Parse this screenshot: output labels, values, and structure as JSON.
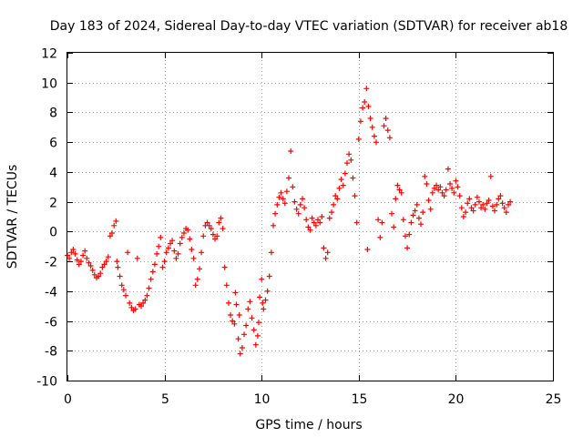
{
  "chart_data": {
    "type": "scatter",
    "title": "Day 183 of 2024, Sidereal Day-to-day VTEC variation (SDTVAR) for receiver ab18",
    "xlabel": "GPS time / hours",
    "ylabel": "SDTVAR / TECUs",
    "xlim": [
      0,
      25
    ],
    "ylim": [
      -10,
      12
    ],
    "grid": true,
    "legend": "none",
    "marker": "+",
    "color": "#ff0000",
    "x_ticks": [
      {
        "value": 0,
        "label": "0"
      },
      {
        "value": 5,
        "label": "5"
      },
      {
        "value": 10,
        "label": "10"
      },
      {
        "value": 15,
        "label": "15"
      },
      {
        "value": 20,
        "label": "20"
      },
      {
        "value": 25,
        "label": "25"
      }
    ],
    "y_ticks": [
      {
        "value": -10,
        "label": "-10"
      },
      {
        "value": -8,
        "label": "-8"
      },
      {
        "value": -6,
        "label": "-6"
      },
      {
        "value": -4,
        "label": "-4"
      },
      {
        "value": -2,
        "label": "-2"
      },
      {
        "value": 0,
        "label": "0"
      },
      {
        "value": 2,
        "label": "2"
      },
      {
        "value": 4,
        "label": "4"
      },
      {
        "value": 6,
        "label": "6"
      },
      {
        "value": 8,
        "label": "8"
      },
      {
        "value": 10,
        "label": "10"
      },
      {
        "value": 12,
        "label": "12"
      }
    ],
    "series": [
      {
        "name": "sdtvar",
        "points": [
          [
            0.0,
            -1.6
          ],
          [
            0.1,
            -1.8
          ],
          [
            0.2,
            -1.4
          ],
          [
            0.3,
            -1.2
          ],
          [
            0.4,
            -1.5
          ],
          [
            0.5,
            -1.9
          ],
          [
            0.6,
            -2.2
          ],
          [
            0.7,
            -2.0
          ],
          [
            0.8,
            -1.6
          ],
          [
            0.9,
            -1.3
          ],
          [
            1.0,
            -1.8
          ],
          [
            1.1,
            -2.1
          ],
          [
            1.2,
            -2.3
          ],
          [
            1.3,
            -2.6
          ],
          [
            1.4,
            -2.9
          ],
          [
            1.5,
            -3.1
          ],
          [
            1.6,
            -3.0
          ],
          [
            1.7,
            -2.8
          ],
          [
            1.8,
            -2.4
          ],
          [
            1.9,
            -2.2
          ],
          [
            2.0,
            -2.0
          ],
          [
            2.1,
            -1.7
          ],
          [
            2.2,
            -0.3
          ],
          [
            2.3,
            -0.1
          ],
          [
            2.4,
            0.4
          ],
          [
            2.5,
            0.7
          ],
          [
            2.55,
            -2.0
          ],
          [
            2.6,
            -2.4
          ],
          [
            2.7,
            -3.0
          ],
          [
            2.8,
            -3.6
          ],
          [
            2.9,
            -3.9
          ],
          [
            3.0,
            -4.3
          ],
          [
            3.1,
            -1.4
          ],
          [
            3.2,
            -4.8
          ],
          [
            3.3,
            -5.1
          ],
          [
            3.4,
            -5.3
          ],
          [
            3.5,
            -5.2
          ],
          [
            3.6,
            -1.8
          ],
          [
            3.7,
            -4.9
          ],
          [
            3.8,
            -5.0
          ],
          [
            3.9,
            -4.8
          ],
          [
            4.0,
            -4.6
          ],
          [
            4.1,
            -4.3
          ],
          [
            4.2,
            -3.8
          ],
          [
            4.3,
            -3.2
          ],
          [
            4.4,
            -2.7
          ],
          [
            4.5,
            -2.2
          ],
          [
            4.6,
            -1.5
          ],
          [
            4.7,
            -1.0
          ],
          [
            4.8,
            -0.4
          ],
          [
            4.9,
            -2.4
          ],
          [
            5.0,
            -2.0
          ],
          [
            5.1,
            -1.4
          ],
          [
            5.2,
            -1.1
          ],
          [
            5.3,
            -0.8
          ],
          [
            5.4,
            -0.6
          ],
          [
            5.5,
            -1.3
          ],
          [
            5.6,
            -1.8
          ],
          [
            5.7,
            -1.5
          ],
          [
            5.8,
            -0.8
          ],
          [
            5.9,
            -0.4
          ],
          [
            6.0,
            -0.1
          ],
          [
            6.1,
            0.2
          ],
          [
            6.2,
            0.1
          ],
          [
            6.3,
            -0.5
          ],
          [
            6.4,
            -1.2
          ],
          [
            6.5,
            -1.8
          ],
          [
            6.6,
            -3.6
          ],
          [
            6.7,
            -3.2
          ],
          [
            6.8,
            -2.5
          ],
          [
            6.9,
            -1.4
          ],
          [
            7.0,
            -0.3
          ],
          [
            7.1,
            0.4
          ],
          [
            7.2,
            0.6
          ],
          [
            7.3,
            0.4
          ],
          [
            7.4,
            0.2
          ],
          [
            7.5,
            -0.2
          ],
          [
            7.6,
            -0.5
          ],
          [
            7.7,
            -0.3
          ],
          [
            7.8,
            0.6
          ],
          [
            7.9,
            0.9
          ],
          [
            8.0,
            0.2
          ],
          [
            8.1,
            -2.4
          ],
          [
            8.2,
            -3.6
          ],
          [
            8.3,
            -4.8
          ],
          [
            8.4,
            -5.6
          ],
          [
            8.5,
            -6.0
          ],
          [
            8.6,
            -6.2
          ],
          [
            8.65,
            -4.1
          ],
          [
            8.7,
            -4.9
          ],
          [
            8.8,
            -7.2
          ],
          [
            8.85,
            -5.6
          ],
          [
            8.9,
            -8.2
          ],
          [
            9.0,
            -7.8
          ],
          [
            9.1,
            -6.9
          ],
          [
            9.2,
            -6.3
          ],
          [
            9.3,
            -5.2
          ],
          [
            9.4,
            -4.7
          ],
          [
            9.5,
            -5.8
          ],
          [
            9.6,
            -6.6
          ],
          [
            9.7,
            -7.6
          ],
          [
            9.8,
            -7.0
          ],
          [
            9.85,
            -6.1
          ],
          [
            9.9,
            -4.4
          ],
          [
            10.0,
            -3.2
          ],
          [
            10.05,
            -4.8
          ],
          [
            10.1,
            -5.2
          ],
          [
            10.2,
            -4.6
          ],
          [
            10.3,
            -4.0
          ],
          [
            10.4,
            -3.0
          ],
          [
            10.5,
            -1.4
          ],
          [
            10.6,
            0.4
          ],
          [
            10.7,
            1.2
          ],
          [
            10.8,
            1.8
          ],
          [
            10.9,
            2.3
          ],
          [
            11.0,
            2.6
          ],
          [
            11.1,
            2.2
          ],
          [
            11.2,
            1.9
          ],
          [
            11.3,
            2.7
          ],
          [
            11.4,
            3.6
          ],
          [
            11.5,
            5.4
          ],
          [
            11.6,
            3.0
          ],
          [
            11.7,
            2.0
          ],
          [
            11.8,
            1.5
          ],
          [
            11.9,
            1.2
          ],
          [
            12.0,
            1.8
          ],
          [
            12.1,
            2.2
          ],
          [
            12.2,
            1.6
          ],
          [
            12.3,
            0.8
          ],
          [
            12.4,
            0.3
          ],
          [
            12.5,
            0.1
          ],
          [
            12.6,
            0.9
          ],
          [
            12.7,
            0.6
          ],
          [
            12.8,
            0.4
          ],
          [
            12.9,
            0.8
          ],
          [
            13.0,
            0.6
          ],
          [
            13.1,
            1.0
          ],
          [
            13.2,
            -1.1
          ],
          [
            13.3,
            -1.8
          ],
          [
            13.4,
            -1.4
          ],
          [
            13.5,
            0.9
          ],
          [
            13.6,
            1.3
          ],
          [
            13.7,
            1.8
          ],
          [
            13.8,
            2.4
          ],
          [
            13.9,
            2.2
          ],
          [
            14.0,
            2.9
          ],
          [
            14.1,
            3.5
          ],
          [
            14.2,
            3.1
          ],
          [
            14.3,
            3.9
          ],
          [
            14.4,
            4.6
          ],
          [
            14.5,
            5.2
          ],
          [
            14.6,
            4.8
          ],
          [
            14.7,
            3.6
          ],
          [
            14.8,
            2.4
          ],
          [
            14.9,
            0.6
          ],
          [
            15.0,
            6.2
          ],
          [
            15.1,
            7.4
          ],
          [
            15.2,
            8.3
          ],
          [
            15.3,
            8.7
          ],
          [
            15.4,
            9.6
          ],
          [
            15.45,
            -1.2
          ],
          [
            15.5,
            8.4
          ],
          [
            15.6,
            7.6
          ],
          [
            15.7,
            7.0
          ],
          [
            15.8,
            6.4
          ],
          [
            15.9,
            6.0
          ],
          [
            16.0,
            0.8
          ],
          [
            16.1,
            -0.4
          ],
          [
            16.2,
            0.6
          ],
          [
            16.3,
            7.1
          ],
          [
            16.4,
            7.6
          ],
          [
            16.5,
            6.8
          ],
          [
            16.6,
            6.3
          ],
          [
            16.7,
            1.2
          ],
          [
            16.8,
            0.3
          ],
          [
            16.9,
            2.2
          ],
          [
            17.0,
            3.1
          ],
          [
            17.1,
            2.8
          ],
          [
            17.2,
            2.6
          ],
          [
            17.3,
            0.8
          ],
          [
            17.4,
            -0.3
          ],
          [
            17.5,
            -1.1
          ],
          [
            17.6,
            -0.2
          ],
          [
            17.7,
            0.6
          ],
          [
            17.8,
            1.1
          ],
          [
            17.9,
            1.4
          ],
          [
            18.0,
            1.8
          ],
          [
            18.1,
            0.9
          ],
          [
            18.2,
            0.5
          ],
          [
            18.3,
            1.3
          ],
          [
            18.4,
            3.7
          ],
          [
            18.5,
            3.2
          ],
          [
            18.6,
            2.1
          ],
          [
            18.7,
            1.5
          ],
          [
            18.8,
            2.6
          ],
          [
            18.9,
            2.9
          ],
          [
            19.0,
            3.1
          ],
          [
            19.1,
            2.8
          ],
          [
            19.2,
            3.0
          ],
          [
            19.3,
            2.6
          ],
          [
            19.4,
            2.4
          ],
          [
            19.5,
            2.8
          ],
          [
            19.6,
            4.2
          ],
          [
            19.7,
            3.2
          ],
          [
            19.8,
            2.9
          ],
          [
            19.9,
            2.6
          ],
          [
            20.0,
            3.4
          ],
          [
            20.1,
            3.0
          ],
          [
            20.2,
            2.4
          ],
          [
            20.3,
            1.6
          ],
          [
            20.4,
            1.0
          ],
          [
            20.5,
            1.3
          ],
          [
            20.6,
            1.9
          ],
          [
            20.7,
            2.2
          ],
          [
            20.8,
            1.6
          ],
          [
            20.9,
            1.4
          ],
          [
            21.0,
            1.8
          ],
          [
            21.1,
            2.3
          ],
          [
            21.2,
            2.0
          ],
          [
            21.3,
            1.6
          ],
          [
            21.4,
            1.8
          ],
          [
            21.5,
            1.5
          ],
          [
            21.6,
            1.9
          ],
          [
            21.7,
            2.1
          ],
          [
            21.8,
            3.7
          ],
          [
            21.9,
            1.7
          ],
          [
            22.0,
            1.4
          ],
          [
            22.1,
            1.8
          ],
          [
            22.2,
            2.2
          ],
          [
            22.3,
            2.4
          ],
          [
            22.4,
            1.9
          ],
          [
            22.5,
            1.6
          ],
          [
            22.6,
            1.3
          ],
          [
            22.7,
            1.8
          ],
          [
            22.8,
            2.0
          ]
        ]
      }
    ]
  }
}
